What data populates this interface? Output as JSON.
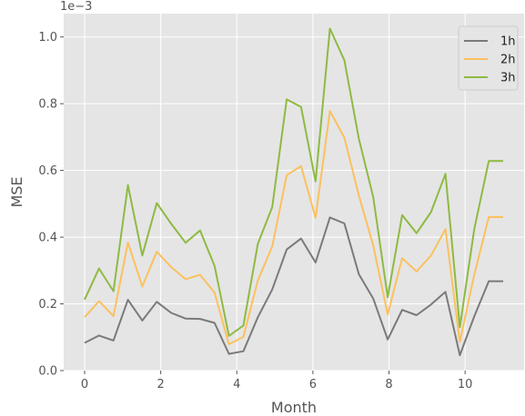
{
  "chart_data": {
    "type": "line",
    "xlabel": "Month",
    "ylabel": "MSE",
    "offset_text": "1e−3",
    "xlim": [
      -0.55,
      11.55
    ],
    "ylim": [
      0,
      1.07
    ],
    "x_ticks": [
      0,
      2,
      4,
      6,
      8,
      10
    ],
    "y_ticks": [
      0.0,
      0.2,
      0.4,
      0.6,
      0.8,
      1.0
    ],
    "y_tick_labels": [
      "0.0",
      "0.2",
      "0.4",
      "0.6",
      "0.8",
      "1.0"
    ],
    "grid": true,
    "legend_position": "top-right",
    "x": [
      0,
      0.379,
      0.759,
      1.138,
      1.517,
      1.897,
      2.276,
      2.655,
      3.034,
      3.414,
      3.793,
      4.172,
      4.552,
      4.931,
      5.31,
      5.69,
      6.069,
      6.448,
      6.828,
      7.207,
      7.586,
      7.966,
      8.345,
      8.724,
      9.103,
      9.483,
      9.862,
      10.241,
      10.621,
      11.0
    ],
    "series": [
      {
        "name": "1h",
        "color": "#7a7a7a",
        "values": [
          0.083,
          0.105,
          0.09,
          0.212,
          0.15,
          0.206,
          0.173,
          0.156,
          0.155,
          0.143,
          0.05,
          0.058,
          0.16,
          0.243,
          0.363,
          0.396,
          0.324,
          0.459,
          0.441,
          0.289,
          0.216,
          0.093,
          0.182,
          0.166,
          0.198,
          0.236,
          0.046,
          0.163,
          0.268,
          0.268
        ]
      },
      {
        "name": "2h",
        "color": "#fbc15e",
        "values": [
          0.16,
          0.208,
          0.163,
          0.384,
          0.252,
          0.356,
          0.31,
          0.274,
          0.287,
          0.234,
          0.079,
          0.101,
          0.27,
          0.372,
          0.586,
          0.613,
          0.458,
          0.778,
          0.698,
          0.525,
          0.375,
          0.168,
          0.337,
          0.297,
          0.345,
          0.424,
          0.086,
          0.288,
          0.46,
          0.46
        ]
      },
      {
        "name": "3h",
        "color": "#8eba42",
        "values": [
          0.213,
          0.306,
          0.238,
          0.556,
          0.345,
          0.502,
          0.44,
          0.383,
          0.42,
          0.314,
          0.104,
          0.135,
          0.38,
          0.49,
          0.813,
          0.79,
          0.567,
          1.025,
          0.93,
          0.695,
          0.52,
          0.22,
          0.466,
          0.412,
          0.475,
          0.59,
          0.13,
          0.425,
          0.628,
          0.628
        ]
      }
    ]
  }
}
